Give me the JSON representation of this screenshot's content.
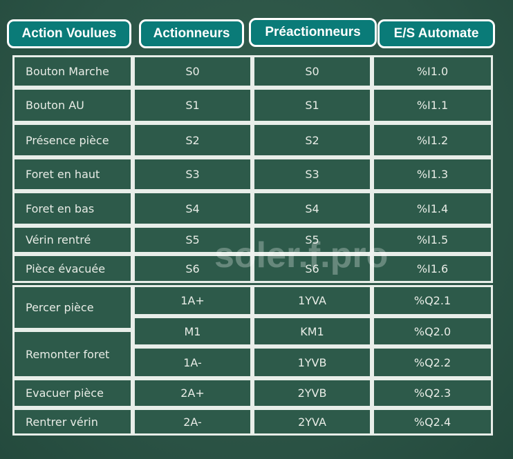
{
  "headers": [
    "Action Voulues",
    "Actionneurs",
    "Préactionneurs",
    "E/S Automate"
  ],
  "rows": [
    {
      "action": "Bouton Marche",
      "actionneur": "S0",
      "preactionneur": "S0",
      "es": "%I1.0"
    },
    {
      "action": "Bouton AU",
      "actionneur": "S1",
      "preactionneur": "S1",
      "es": "%I1.1"
    },
    {
      "action": "Présence pièce",
      "actionneur": "S2",
      "preactionneur": "S2",
      "es": "%I1.2"
    },
    {
      "action": "Foret en haut",
      "actionneur": "S3",
      "preactionneur": "S3",
      "es": "%I1.3"
    },
    {
      "action": "Foret en bas",
      "actionneur": "S4",
      "preactionneur": "S4",
      "es": "%I1.4"
    },
    {
      "action": "Vérin rentré",
      "actionneur": "S5",
      "preactionneur": "S5",
      "es": "%I1.5"
    },
    {
      "action": "Pièce évacuée",
      "actionneur": "S6",
      "preactionneur": "S6",
      "es": "%I1.6"
    },
    {
      "action": "Percer pièce",
      "actionneur": "1A+",
      "preactionneur": "1YVA",
      "es": "%Q2.1"
    },
    {
      "action": "Remonter foret",
      "actionneur": "M1",
      "preactionneur": "KM1",
      "es": "%Q2.0"
    },
    {
      "action": "",
      "actionneur": "1A-",
      "preactionneur": "1YVB",
      "es": "%Q2.2"
    },
    {
      "action": "Evacuer pièce",
      "actionneur": "2A+",
      "preactionneur": "2YVB",
      "es": "%Q2.3"
    },
    {
      "action": "Rentrer vérin",
      "actionneur": "2A-",
      "preactionneur": "2YVA",
      "es": "%Q2.4"
    }
  ],
  "watermark": "soler.f.pro",
  "colors": {
    "header": "#0a7b78",
    "board": "#2c5446",
    "chalk": "#e8eee9"
  }
}
